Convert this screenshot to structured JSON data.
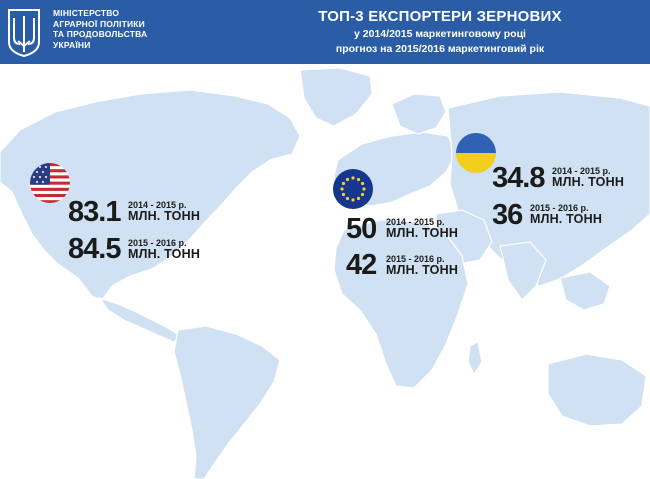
{
  "header": {
    "ministry_lines": [
      "МІНІСТЕРСТВО",
      "АГРАРНОЇ ПОЛІТИКИ",
      "ТА ПРОДОВОЛЬСТВА",
      "УКРАЇНИ"
    ],
    "title": "ТОП-3 ЕКСПОРТЕРИ ЗЕРНОВИХ",
    "subtitle_1": "у 2014/2015 маркетинговому році",
    "subtitle_2": "прогноз на 2015/2016 маркетинговий рік"
  },
  "colors": {
    "header_bg": "#2b5da6",
    "map_land": "#cfe1f2",
    "text": "#1b1b1b"
  },
  "icons": [
    "ukraine-emblem-icon",
    "usa-flag-icon",
    "eu-flag-icon",
    "ukraine-flag-icon"
  ],
  "exporters": {
    "usa": {
      "y1_value": "83.1",
      "y1_period": "2014 - 2015 р.",
      "y1_unit": "МЛН. ТОНН",
      "y2_value": "84.5",
      "y2_period": "2015 - 2016 р.",
      "y2_unit": "МЛН. ТОНН"
    },
    "eu": {
      "y1_value": "50",
      "y1_period": "2014 - 2015 р.",
      "y1_unit": "МЛН. ТОНН",
      "y2_value": "42",
      "y2_period": "2015 - 2016 р.",
      "y2_unit": "МЛН. ТОНН"
    },
    "ukraine": {
      "y1_value": "34.8",
      "y1_period": "2014 - 2015 р.",
      "y1_unit": "МЛН. ТОНН",
      "y2_value": "36",
      "y2_period": "2015 - 2016 р.",
      "y2_unit": "МЛН. ТОНН"
    }
  }
}
